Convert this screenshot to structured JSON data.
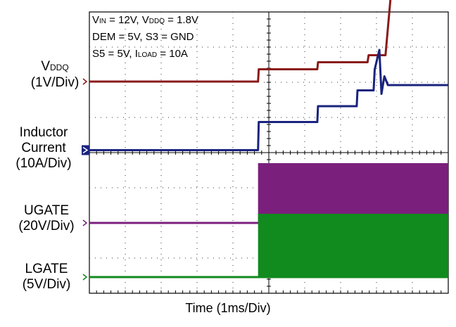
{
  "chart_data": {
    "type": "line",
    "title": "",
    "xlabel": "Time (1ms/Div)",
    "ylabel": "",
    "grid": true,
    "grid_divisions": {
      "x": 10,
      "y": 8
    },
    "xlim": [
      0,
      10
    ],
    "x_unit": "ms",
    "conditions": [
      {
        "parts": [
          {
            "t": "V"
          },
          {
            "t": "IN",
            "sub": true
          },
          {
            "t": " = 12V, V"
          },
          {
            "t": "DDQ",
            "sub": true
          },
          {
            "t": " = 1.8V"
          }
        ]
      },
      {
        "parts": [
          {
            "t": "DEM = 5V, S3 = GND"
          }
        ]
      },
      {
        "parts": [
          {
            "t": "S5 = 5V, I"
          },
          {
            "t": "LOAD",
            "sub": true
          },
          {
            "t": " = 10A"
          }
        ]
      }
    ],
    "series": [
      {
        "key": "vddq",
        "label_main": "V",
        "label_sub": "DDQ",
        "scale": "(1V/Div)",
        "color": "#8b1a1a",
        "x": [
          0,
          4.7,
          4.72,
          6.35,
          6.37,
          7.75,
          7.78,
          8.25,
          8.45,
          10
        ],
        "y": [
          0,
          0,
          0.35,
          0.35,
          0.55,
          0.55,
          0.75,
          0.75,
          3.05,
          3.05
        ]
      },
      {
        "key": "inductor",
        "label_lines": [
          "Inductor",
          "Current"
        ],
        "scale": "(10A/Div)",
        "color": "#1a237e",
        "x": [
          0,
          4.7,
          4.72,
          6.35,
          6.37,
          7.45,
          7.47,
          7.92,
          7.95,
          8.08,
          8.14,
          8.22,
          8.32,
          10
        ],
        "y": [
          0,
          0,
          0.8,
          0.8,
          1.25,
          1.25,
          1.7,
          1.7,
          2.3,
          2.85,
          1.6,
          2.1,
          1.85,
          1.85
        ]
      },
      {
        "key": "ugate",
        "label_lines": [
          "UGATE"
        ],
        "scale": "(20V/Div)",
        "color": "#7b1f7d",
        "x": [
          0,
          4.7,
          10
        ],
        "y": [
          0,
          0,
          0
        ],
        "active_from": 4.7,
        "active_band": [
          0,
          1.7
        ]
      },
      {
        "key": "lgate",
        "label_lines": [
          "LGATE"
        ],
        "scale": "(5V/Div)",
        "color": "#118a1e",
        "x": [
          0,
          4.7,
          10
        ],
        "y": [
          0,
          0,
          0
        ],
        "active_from": 4.7,
        "active_band": [
          0,
          1.8
        ]
      }
    ]
  }
}
